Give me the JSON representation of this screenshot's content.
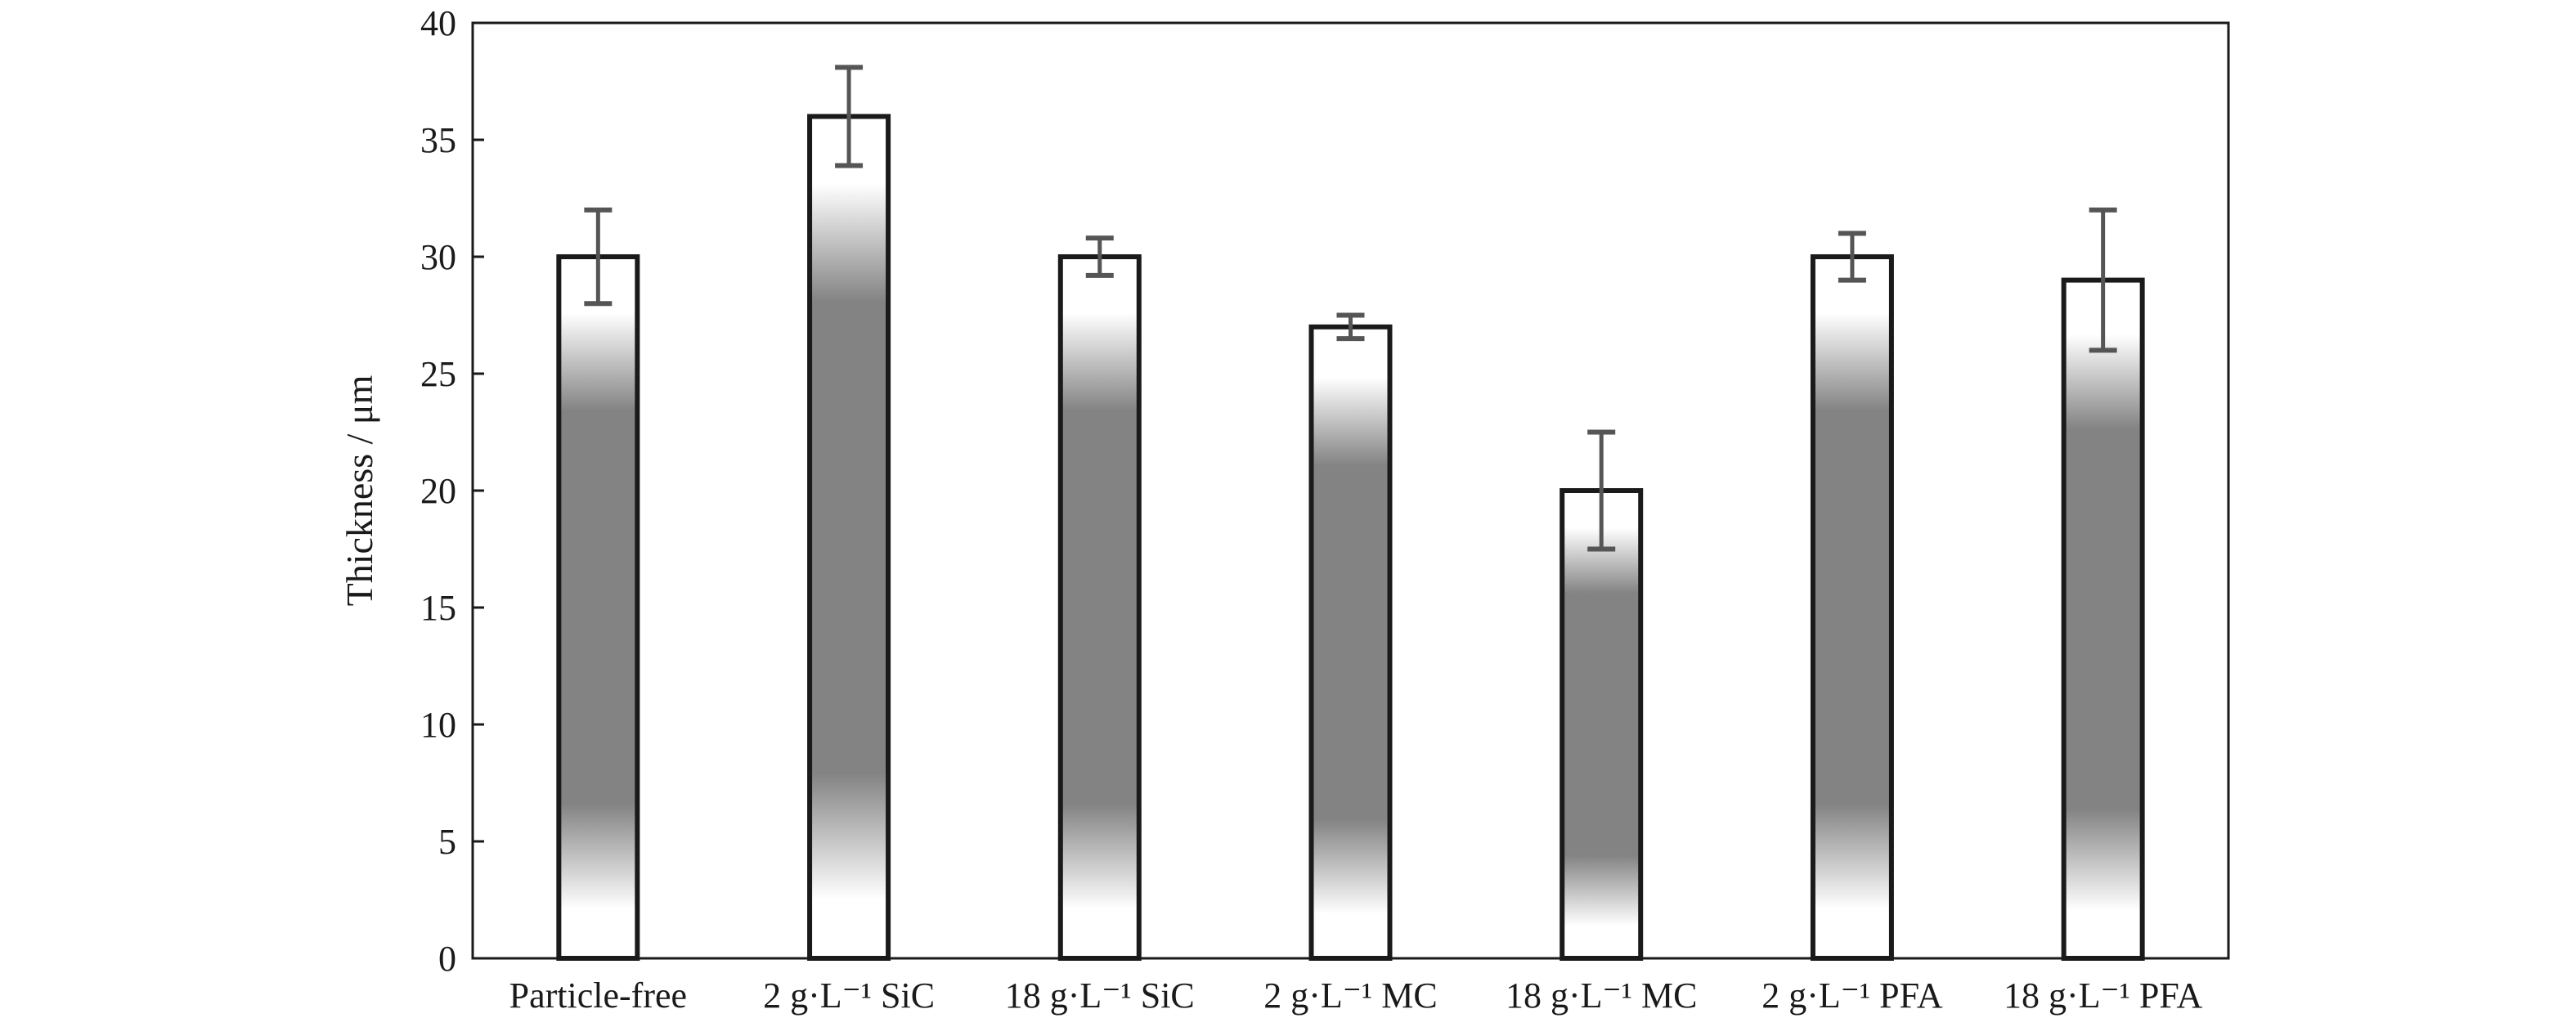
{
  "chart_data": {
    "type": "bar",
    "title": "",
    "xlabel": "",
    "ylabel": "Thickness / μm",
    "ylim": [
      0,
      40
    ],
    "yticks": [
      0,
      5,
      10,
      15,
      20,
      25,
      30,
      35,
      40
    ],
    "grid": false,
    "legend": "none",
    "categories": [
      "Particle-free",
      "2 g·L⁻¹ SiC",
      "18 g·L⁻¹ SiC",
      "2 g·L⁻¹ MC",
      "18 g·L⁻¹ MC",
      "2 g·L⁻¹ PFA",
      "18 g·L⁻¹ PFA"
    ],
    "values": [
      30,
      36,
      30,
      27,
      20,
      30,
      29
    ],
    "errors": [
      2,
      2.1,
      0.8,
      0.5,
      2.5,
      1,
      3
    ],
    "colors": {
      "bar_fill_center": "#838383",
      "bar_fill_edge": "#ffffff",
      "bar_outline": "#1a1a1a",
      "error_bar": "#555555"
    }
  }
}
